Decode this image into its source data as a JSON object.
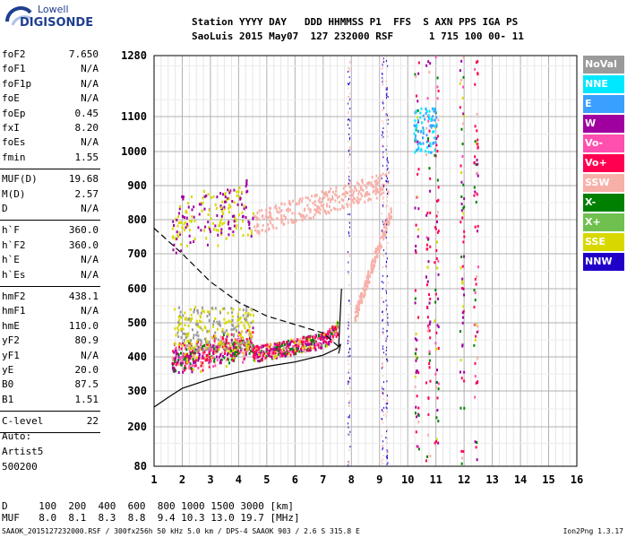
{
  "brand": {
    "line1": "Lowell",
    "line2": "DIGISONDE"
  },
  "header": {
    "labels": "Station YYYY DAY   DDD HHMMSS P1  FFS  S AXN PPS IGA PS",
    "values": "SaoLuis 2015 May07  127 232000 RSF      1 715 100 00- 11"
  },
  "params": [
    {
      "name": "foF2",
      "value": "7.650"
    },
    {
      "name": "foF1",
      "value": "N/A"
    },
    {
      "name": "foF1p",
      "value": "N/A"
    },
    {
      "name": "foE",
      "value": "N/A"
    },
    {
      "name": "foEp",
      "value": "0.45"
    },
    {
      "name": "fxI",
      "value": "8.20"
    },
    {
      "name": "foEs",
      "value": "N/A"
    },
    {
      "name": "fmin",
      "value": "1.55"
    },
    {
      "name": "MUF(D)",
      "value": "19.68"
    },
    {
      "name": "M(D)",
      "value": "2.57"
    },
    {
      "name": "D",
      "value": "N/A"
    },
    {
      "name": "h`F",
      "value": "360.0"
    },
    {
      "name": "h`F2",
      "value": "360.0"
    },
    {
      "name": "h`E",
      "value": "N/A"
    },
    {
      "name": "h`Es",
      "value": "N/A"
    },
    {
      "name": "hmF2",
      "value": "438.1"
    },
    {
      "name": "hmF1",
      "value": "N/A"
    },
    {
      "name": "hmE",
      "value": "110.0"
    },
    {
      "name": "yF2",
      "value": "80.9"
    },
    {
      "name": "yF1",
      "value": "N/A"
    },
    {
      "name": "yE",
      "value": "20.0"
    },
    {
      "name": "B0",
      "value": "87.5"
    },
    {
      "name": "B1",
      "value": "1.51"
    },
    {
      "name": "C-level",
      "value": "22"
    }
  ],
  "auto": {
    "label": "Auto:",
    "artist": "Artist5",
    "version": "500200"
  },
  "legend": [
    {
      "label": "NoVal",
      "color": "#9a9a9a"
    },
    {
      "label": "NNE",
      "color": "#00e8ff"
    },
    {
      "label": "E",
      "color": "#3aa0ff"
    },
    {
      "label": "W",
      "color": "#a000a0"
    },
    {
      "label": "Vo-",
      "color": "#ff50b0"
    },
    {
      "label": "Vo+",
      "color": "#ff0050"
    },
    {
      "label": "SSW",
      "color": "#f7b0a8"
    },
    {
      "label": "X-",
      "color": "#008000"
    },
    {
      "label": "X+",
      "color": "#70c050"
    },
    {
      "label": "SSE",
      "color": "#d8d800"
    },
    {
      "label": "NNW",
      "color": "#2000c8"
    }
  ],
  "chart_data": {
    "type": "scatter",
    "title": "",
    "xlabel": "",
    "ylabel": "",
    "xlim": [
      1,
      16
    ],
    "ylim_scale": "log",
    "x_ticks": [
      "1",
      "2",
      "3",
      "4",
      "5",
      "6",
      "7",
      "8",
      "9",
      "10",
      "11",
      "12",
      "13",
      "14",
      "15",
      "16"
    ],
    "y_ticks": [
      "80",
      "200",
      "300",
      "400",
      "500",
      "600",
      "700",
      "800",
      "900",
      "1000",
      "1100",
      "1280"
    ],
    "grid": true,
    "legend_position": "right",
    "markers": [
      {
        "name": "dashed-profile",
        "style": "dashed",
        "x": [
          1.0,
          2.0,
          3.0,
          4.0,
          5.0,
          6.0,
          7.0,
          7.55
        ],
        "y": [
          775,
          700,
          620,
          560,
          520,
          495,
          470,
          430
        ]
      },
      {
        "name": "solid-profile",
        "style": "solid",
        "x": [
          1.0,
          1.5,
          2.0,
          3.0,
          4.0,
          5.0,
          6.0,
          7.0,
          7.5,
          7.62,
          7.55
        ],
        "y": [
          255,
          282,
          308,
          335,
          355,
          372,
          385,
          405,
          425,
          438,
          410
        ]
      }
    ]
  },
  "mufTable": {
    "dLabel": "D",
    "dValues": "  100  200  400  600  800 1000 1500 3000 [km]",
    "mufLabel": "MUF",
    "mufValues": "  8.0  8.1  8.3  8.8  9.4 10.3 13.0 19.7 [MHz]"
  },
  "footer": {
    "file": "SAAOK_2015127232000.RSF / 300fx256h 50 kHz 5.0 km / DPS-4 SAAOK 903 / 2.6 S 315.8 E",
    "version": "Ion2Png 1.3.17"
  }
}
